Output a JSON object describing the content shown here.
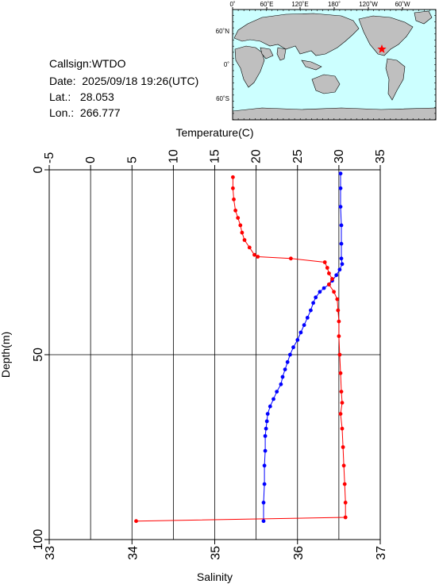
{
  "info": {
    "callsign": "Callsign:WTDO",
    "date": "Date:  2025/09/18 19:26(UTC)",
    "lat": "Lat.:   28.053",
    "lon": "Lon.:  266.777"
  },
  "map": {
    "top_ticks": [
      "0˚",
      "60˚E",
      "120˚E",
      "180˚",
      "120˚W",
      "60˚W"
    ],
    "left_ticks": [
      "60˚N",
      "0˚",
      "60˚S"
    ],
    "ocean_color": "#ccffff",
    "land_color": "#bfbfbf",
    "marker": "star",
    "marker_color": "#ff0000"
  },
  "chart_data": {
    "type": "line",
    "ylabel": "Depth(m)",
    "top_axis": {
      "label": "Temperature(C)",
      "range": [
        -5,
        35
      ],
      "ticks": [
        "-5",
        "0",
        "5",
        "10",
        "15",
        "20",
        "25",
        "30",
        "35"
      ]
    },
    "bottom_axis": {
      "label": "Salinity",
      "range": [
        33,
        37
      ],
      "ticks": [
        "33",
        "34",
        "35",
        "36",
        "37"
      ]
    },
    "y_axis": {
      "range": [
        0,
        100
      ],
      "inverted": true,
      "ticks": [
        "0",
        "50",
        "100"
      ]
    },
    "grid": true,
    "series": [
      {
        "quantity": "temperature",
        "axis": "top",
        "color": "#0000ff",
        "points": [
          [
            30.2,
            1
          ],
          [
            30.2,
            5
          ],
          [
            30.2,
            10
          ],
          [
            30.3,
            15
          ],
          [
            30.3,
            20
          ],
          [
            30.3,
            24
          ],
          [
            30.4,
            25.5
          ],
          [
            30.1,
            27
          ],
          [
            29.7,
            28.5
          ],
          [
            29.2,
            30
          ],
          [
            28.8,
            31
          ],
          [
            28.2,
            32
          ],
          [
            27.7,
            33
          ],
          [
            27.2,
            34.5
          ],
          [
            26.9,
            36
          ],
          [
            26.6,
            38
          ],
          [
            26.2,
            40
          ],
          [
            25.8,
            42
          ],
          [
            25.4,
            44
          ],
          [
            25,
            46
          ],
          [
            24.5,
            48
          ],
          [
            24.1,
            50
          ],
          [
            23.8,
            52
          ],
          [
            23.5,
            54
          ],
          [
            23.2,
            56
          ],
          [
            23,
            58
          ],
          [
            22.5,
            60
          ],
          [
            22.1,
            62
          ],
          [
            21.7,
            64
          ],
          [
            21.4,
            66
          ],
          [
            21.3,
            68
          ],
          [
            21.2,
            70
          ],
          [
            21.1,
            72
          ],
          [
            21.1,
            76
          ],
          [
            21,
            80
          ],
          [
            21,
            85
          ],
          [
            20.9,
            90
          ],
          [
            20.9,
            95
          ]
        ]
      },
      {
        "quantity": "salinity",
        "axis": "bottom",
        "color": "#ff0000",
        "points": [
          [
            35.22,
            2
          ],
          [
            35.22,
            5
          ],
          [
            35.23,
            8
          ],
          [
            35.25,
            11
          ],
          [
            35.28,
            13
          ],
          [
            35.31,
            15
          ],
          [
            35.33,
            17
          ],
          [
            35.36,
            19
          ],
          [
            35.42,
            21
          ],
          [
            35.48,
            23
          ],
          [
            35.52,
            23.5
          ],
          [
            35.92,
            24
          ],
          [
            36.33,
            25
          ],
          [
            36.36,
            26.5
          ],
          [
            36.38,
            28
          ],
          [
            36.42,
            29.5
          ],
          [
            36.38,
            31
          ],
          [
            36.44,
            33
          ],
          [
            36.48,
            35
          ],
          [
            36.49,
            38
          ],
          [
            36.5,
            41
          ],
          [
            36.5,
            45
          ],
          [
            36.51,
            50
          ],
          [
            36.52,
            55
          ],
          [
            36.53,
            60
          ],
          [
            36.54,
            63
          ],
          [
            36.52,
            66
          ],
          [
            36.54,
            70
          ],
          [
            36.55,
            75
          ],
          [
            36.56,
            80
          ],
          [
            36.57,
            85
          ],
          [
            36.58,
            90
          ],
          [
            36.58,
            94
          ],
          [
            34.05,
            95
          ]
        ]
      }
    ]
  }
}
